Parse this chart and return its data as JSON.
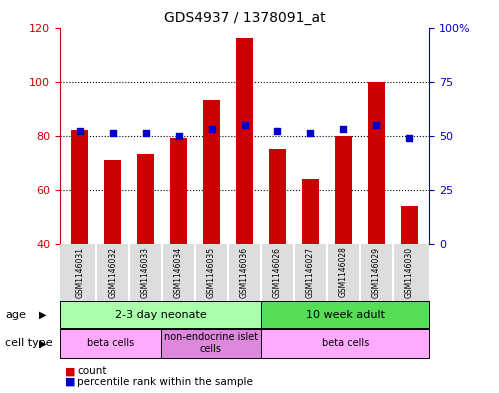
{
  "title": "GDS4937 / 1378091_at",
  "samples": [
    "GSM1146031",
    "GSM1146032",
    "GSM1146033",
    "GSM1146034",
    "GSM1146035",
    "GSM1146036",
    "GSM1146026",
    "GSM1146027",
    "GSM1146028",
    "GSM1146029",
    "GSM1146030"
  ],
  "counts": [
    82,
    71,
    73,
    79,
    93,
    116,
    75,
    64,
    80,
    100,
    54
  ],
  "percentiles": [
    52,
    51,
    51,
    50,
    53,
    55,
    52,
    51,
    53,
    55,
    49
  ],
  "ylim_left": [
    40,
    120
  ],
  "ylim_right": [
    0,
    100
  ],
  "yticks_left": [
    40,
    60,
    80,
    100,
    120
  ],
  "yticks_right": [
    0,
    25,
    50,
    75,
    100
  ],
  "ytick_labels_right": [
    "0",
    "25",
    "50",
    "75",
    "100%"
  ],
  "bar_color": "#cc0000",
  "dot_color": "#0000cc",
  "bar_width": 0.5,
  "age_groups": [
    {
      "label": "2-3 day neonate",
      "start": 0,
      "end": 6,
      "color": "#aaffaa"
    },
    {
      "label": "10 week adult",
      "start": 6,
      "end": 11,
      "color": "#55dd55"
    }
  ],
  "cell_type_groups": [
    {
      "label": "beta cells",
      "start": 0,
      "end": 3,
      "color": "#ffaaff"
    },
    {
      "label": "non-endocrine islet\ncells",
      "start": 3,
      "end": 6,
      "color": "#dd88dd"
    },
    {
      "label": "beta cells",
      "start": 6,
      "end": 11,
      "color": "#ffaaff"
    }
  ],
  "age_label": "age",
  "cell_type_label": "cell type",
  "legend_count_label": "count",
  "legend_percentile_label": "percentile rank within the sample",
  "plot_bg": "#ffffff",
  "sample_bg": "#dddddd",
  "left_tick_color": "#cc0000",
  "right_tick_color": "#0000cc"
}
